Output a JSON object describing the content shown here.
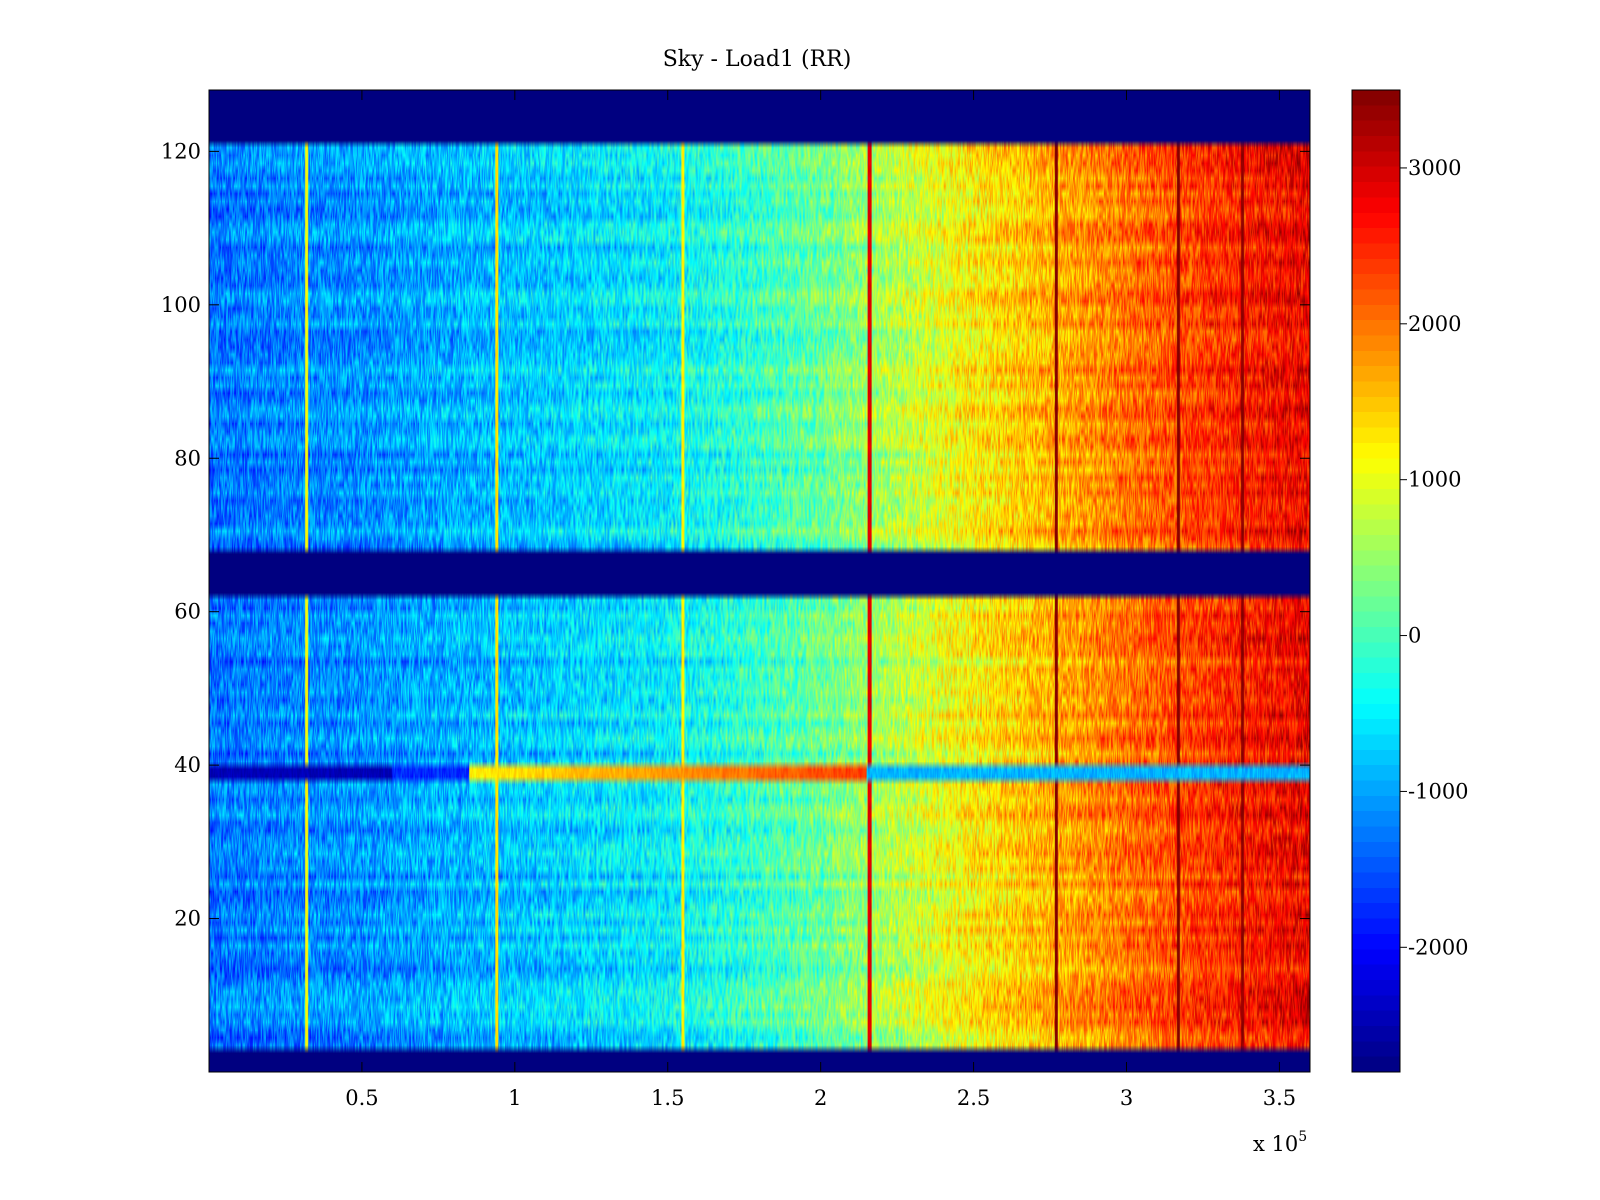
{
  "chart_data": {
    "type": "heatmap",
    "title": "Sky - Load1 (RR)",
    "xlabel": "",
    "ylabel": "",
    "x_multiplier_text": "x 10",
    "x_multiplier_exponent": "5",
    "xlim": [
      0,
      3.6
    ],
    "ylim": [
      0,
      128
    ],
    "x_ticks": [
      0.5,
      1,
      1.5,
      2,
      2.5,
      3,
      3.5
    ],
    "x_tick_labels": [
      "0.5",
      "1",
      "1.5",
      "2",
      "2.5",
      "3",
      "3.5"
    ],
    "y_ticks": [
      20,
      40,
      60,
      80,
      100,
      120
    ],
    "y_tick_labels": [
      "20",
      "40",
      "60",
      "80",
      "100",
      "120"
    ],
    "colorbar": {
      "colormap": "jet",
      "range": [
        -2800,
        3500
      ],
      "ticks": [
        -2000,
        -1000,
        0,
        1000,
        2000,
        3000
      ],
      "tick_labels": [
        "-2000",
        "-1000",
        "0",
        "1000",
        "2000",
        "3000"
      ]
    },
    "masked_channel_bands": [
      {
        "y_from": 0,
        "y_to": 3
      },
      {
        "y_from": 62,
        "y_to": 68
      },
      {
        "y_from": 121,
        "y_to": 128
      }
    ],
    "masked_value": -2800,
    "value_trend": {
      "description": "value increases left to right across time",
      "x": [
        0,
        0.5,
        1,
        1.5,
        2,
        2.5,
        3,
        3.5,
        3.6
      ],
      "value": [
        -1300,
        -1100,
        -800,
        -500,
        200,
        1200,
        2000,
        2700,
        2800
      ]
    },
    "vertical_features": [
      {
        "x": 0.32,
        "value": 1100
      },
      {
        "x": 0.94,
        "value": 1300
      },
      {
        "x": 1.55,
        "value": 1200
      },
      {
        "x": 2.16,
        "value": 2900
      },
      {
        "x": 2.77,
        "value": 3500
      },
      {
        "x": 3.17,
        "value": 3500
      },
      {
        "x": 3.38,
        "value": 3400
      }
    ],
    "horizontal_features": [
      {
        "y": 39,
        "description": "anomalous channel row: dark blue at left, yellow/orange near 1-2 x10^5, light blue to the right"
      }
    ]
  }
}
